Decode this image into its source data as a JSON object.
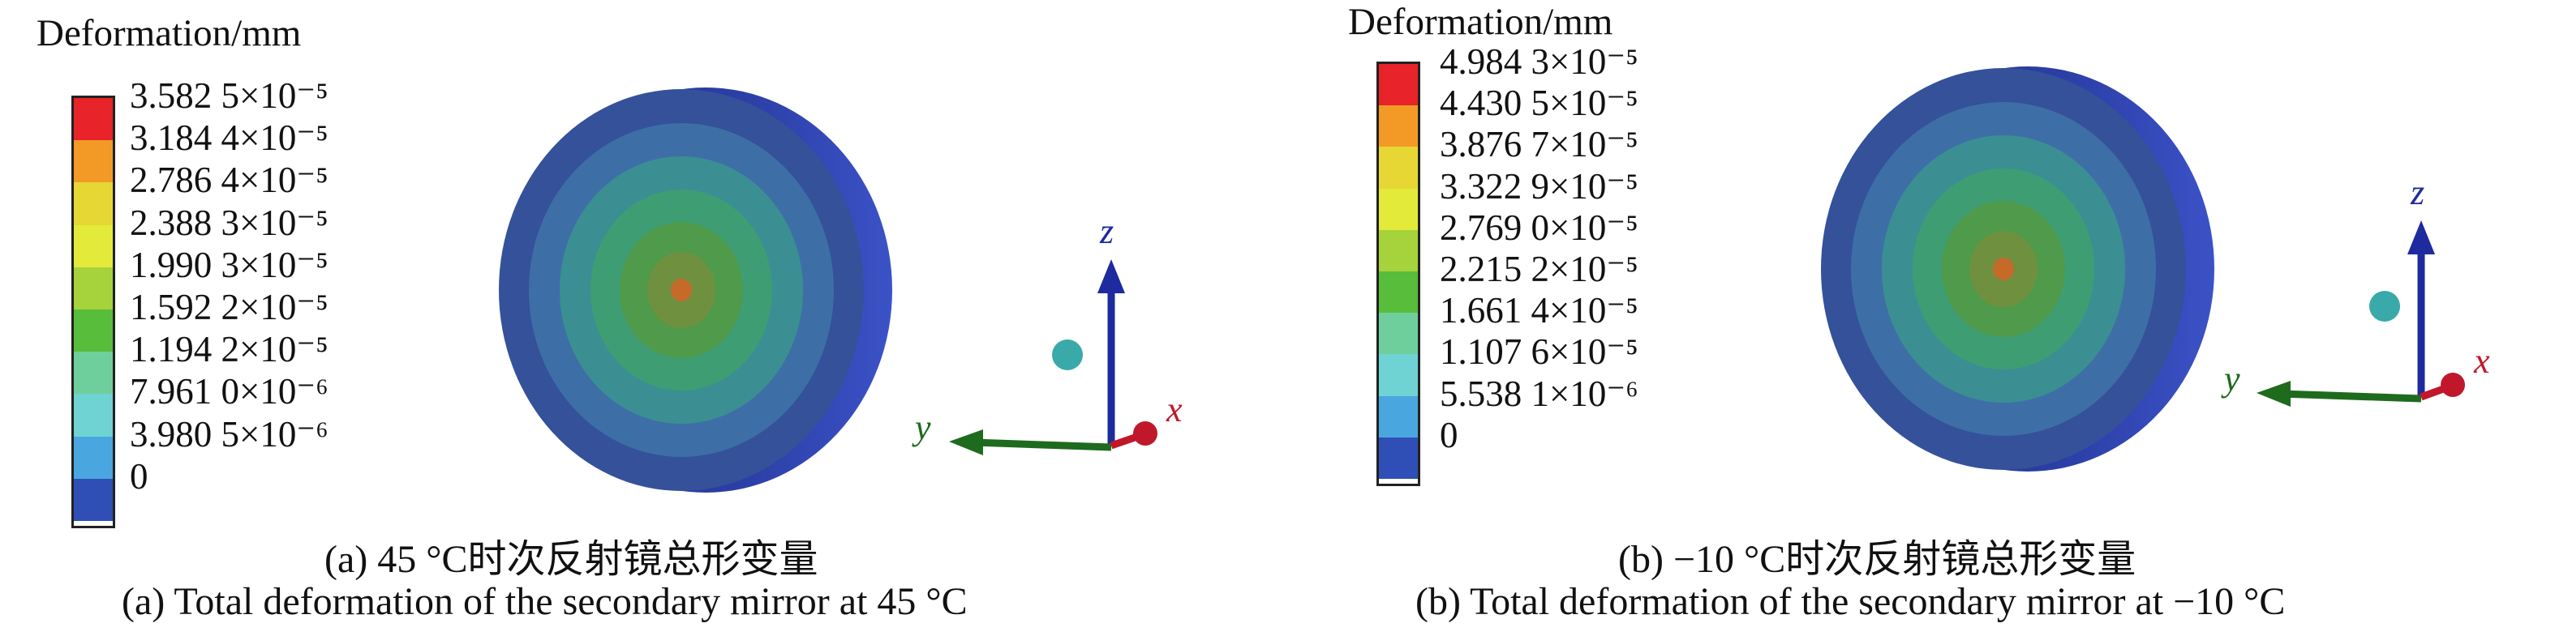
{
  "panels": [
    {
      "id": "a",
      "legend_title": "Deformation/mm",
      "scale_labels": [
        "3.582 5×10⁻⁵",
        "3.184 4×10⁻⁵",
        "2.786 4×10⁻⁵",
        "2.388 3×10⁻⁵",
        "1.990 3×10⁻⁵",
        "1.592 2×10⁻⁵",
        "1.194 2×10⁻⁵",
        "7.961 0×10⁻⁶",
        "3.980 5×10⁻⁶",
        "0"
      ],
      "caption_cn": "(a) 45 °C时次反射镜总形变量",
      "caption_en": "(a) Total deformation of the secondary mirror at 45 °C"
    },
    {
      "id": "b",
      "legend_title": "Deformation/mm",
      "scale_labels": [
        "4.984 3×10⁻⁵",
        "4.430 5×10⁻⁵",
        "3.876 7×10⁻⁵",
        "3.322 9×10⁻⁵",
        "2.769 0×10⁻⁵",
        "2.215 2×10⁻⁵",
        "1.661 4×10⁻⁵",
        "1.107 6×10⁻⁵",
        "5.538 1×10⁻⁶",
        "0"
      ],
      "caption_cn": "(b) −10 °C时次反射镜总形变量",
      "caption_en": "(b) Total deformation of the secondary mirror at −10 °C"
    }
  ],
  "axes_labels": {
    "z": "z",
    "y": "y",
    "x": "x"
  },
  "colors": {
    "scale": [
      "#e8232a",
      "#f39a26",
      "#e6d735",
      "#e3ea3a",
      "#a6d23c",
      "#58bd3a",
      "#6fcf9c",
      "#6fd3d3",
      "#4aa6df",
      "#2f4fb6"
    ],
    "rim": "#2c3fa6",
    "axis_z": "#1d2b9e",
    "axis_y": "#1e6b1e",
    "axis_x": "#c0182a",
    "sphere": "#3aa9a9"
  }
}
